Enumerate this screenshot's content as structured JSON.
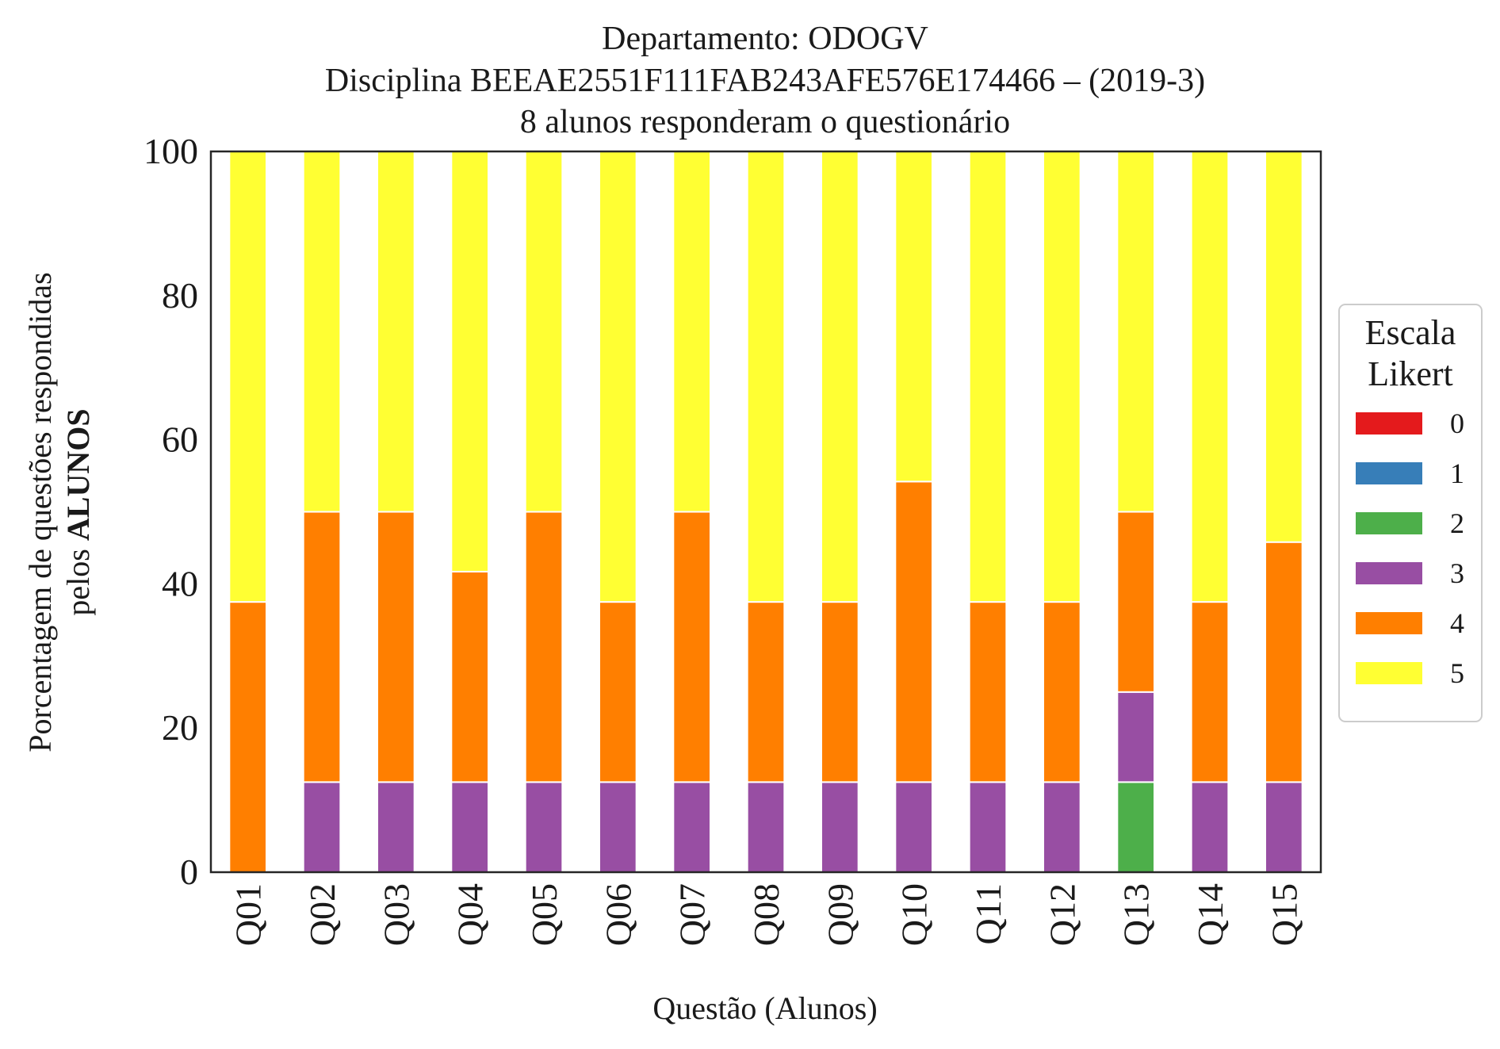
{
  "chart_data": {
    "type": "bar",
    "stacked": true,
    "title_lines": [
      "Departamento: ODOGV",
      "Disciplina BEEAE2551F111FAB243AFE576E174466 – (2019-3)",
      "8 alunos responderam o questionário"
    ],
    "xlabel": "Questão (Alunos)",
    "ylabel_line1": "Porcentagem de questões respondidas",
    "ylabel_line2_prefix": "pelos ",
    "ylabel_line2_bold": "ALUNOS",
    "ylim": [
      0,
      100
    ],
    "yticks": [
      "0",
      "20",
      "40",
      "60",
      "80",
      "100"
    ],
    "grid": false,
    "legend_placement": "right",
    "legend_title_lines": [
      "Escala",
      "Likert"
    ],
    "categories": [
      "Q01",
      "Q02",
      "Q03",
      "Q04",
      "Q05",
      "Q06",
      "Q07",
      "Q08",
      "Q09",
      "Q10",
      "Q11",
      "Q12",
      "Q13",
      "Q14",
      "Q15"
    ],
    "series": [
      {
        "name": "0",
        "color": "#e41a1c",
        "values": [
          0,
          0,
          0,
          0,
          0,
          0,
          0,
          0,
          0,
          0,
          0,
          0,
          0,
          0,
          0
        ]
      },
      {
        "name": "1",
        "color": "#377eb8",
        "values": [
          0,
          0,
          0,
          0,
          0,
          0,
          0,
          0,
          0,
          0,
          0,
          0,
          0,
          0,
          0
        ]
      },
      {
        "name": "2",
        "color": "#4daf4a",
        "values": [
          0,
          0,
          0,
          0,
          0,
          0,
          0,
          0,
          0,
          0,
          0,
          0,
          12.5,
          0,
          0
        ]
      },
      {
        "name": "3",
        "color": "#984ea3",
        "values": [
          0,
          12.5,
          12.5,
          12.5,
          12.5,
          12.5,
          12.5,
          12.5,
          12.5,
          12.5,
          12.5,
          12.5,
          12.5,
          12.5,
          12.5
        ]
      },
      {
        "name": "4",
        "color": "#ff7f00",
        "values": [
          37.5,
          37.5,
          37.5,
          29.2,
          37.5,
          25,
          37.5,
          25,
          25,
          41.7,
          25,
          25,
          25,
          25,
          33.3
        ]
      },
      {
        "name": "5",
        "color": "#ffff33",
        "values": [
          62.5,
          50,
          50,
          58.3,
          50,
          62.5,
          50,
          62.5,
          62.5,
          45.8,
          62.5,
          62.5,
          50,
          62.5,
          54.2
        ]
      }
    ]
  }
}
